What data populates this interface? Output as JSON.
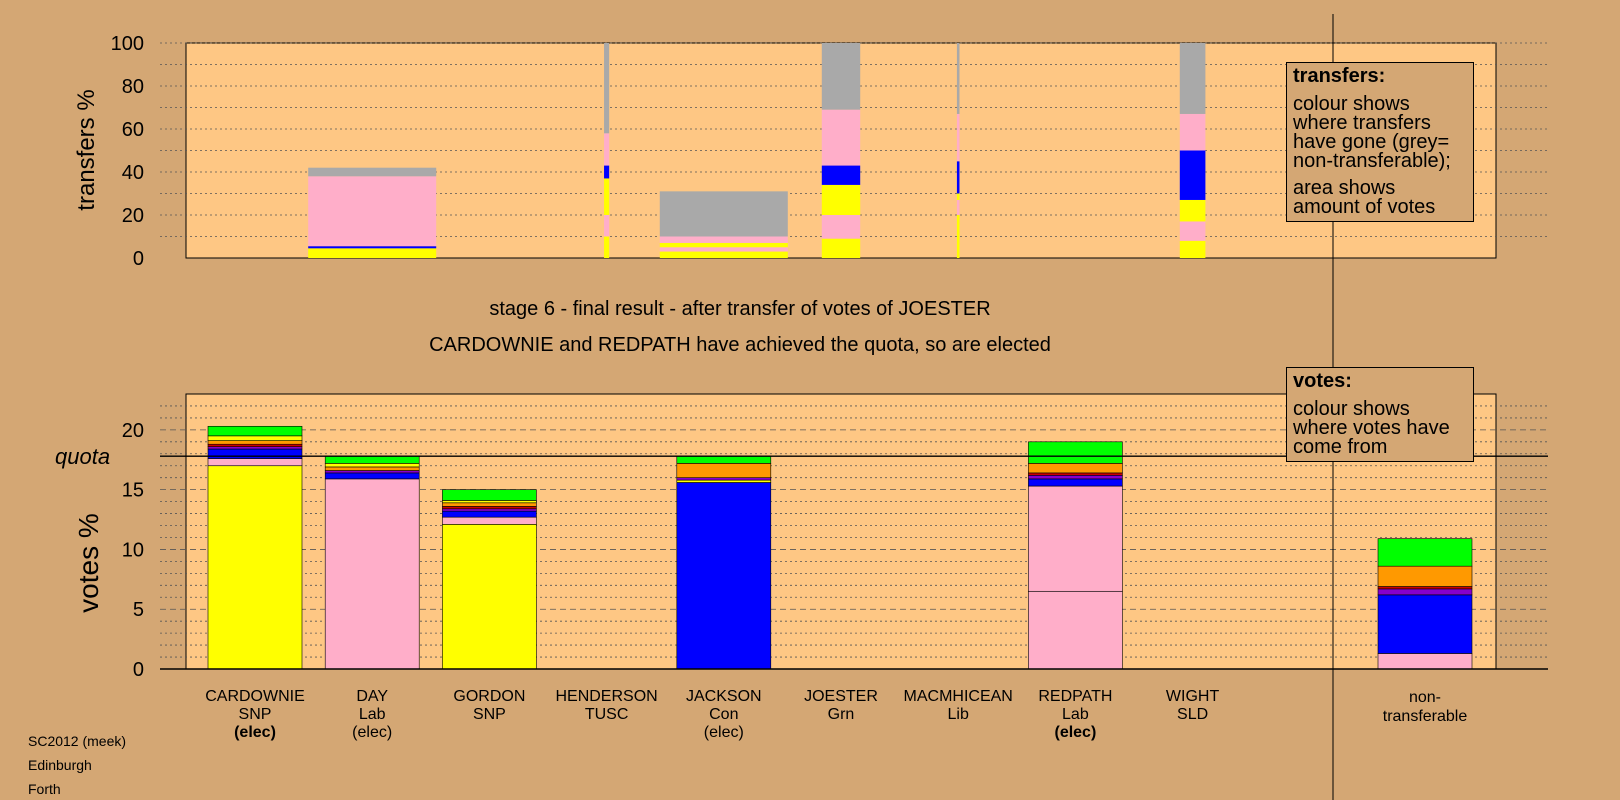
{
  "title_line1": "stage 6 - final result - after transfer of votes of JOESTER",
  "title_line2": "CARDOWNIE and REDPATH have achieved the quota, so are elected",
  "source": [
    "SC2012 (meek)",
    "Edinburgh",
    "Forth"
  ],
  "legend_transfers": {
    "heading": "transfers:",
    "text1": "colour shows where transfers have gone (grey= non-transferable);",
    "text2": "area shows amount of votes"
  },
  "legend_votes": {
    "heading": "votes:",
    "text1": "colour shows where votes have come from"
  },
  "candidates": [
    {
      "name": "CARDOWNIE",
      "party": "SNP",
      "status": "(elec)",
      "status_bold": true
    },
    {
      "name": "DAY",
      "party": "Lab",
      "status": "(elec)",
      "status_bold": false
    },
    {
      "name": "GORDON",
      "party": "SNP",
      "status": "",
      "status_bold": false
    },
    {
      "name": "HENDERSON",
      "party": "TUSC",
      "status": "",
      "status_bold": false
    },
    {
      "name": "JACKSON",
      "party": "Con",
      "status": "(elec)",
      "status_bold": false
    },
    {
      "name": "JOESTER",
      "party": "Grn",
      "status": "",
      "status_bold": false
    },
    {
      "name": "MACMHICEAN",
      "party": "Lib",
      "status": "",
      "status_bold": false
    },
    {
      "name": "REDPATH",
      "party": "Lab",
      "status": "(elec)",
      "status_bold": true
    },
    {
      "name": "WIGHT",
      "party": "SLD",
      "status": "",
      "status_bold": false
    }
  ],
  "nontransferable_label": "non-\ntransferable",
  "colors": {
    "SNP": "#ffff00",
    "Lab": "#ffaec9",
    "Con": "#0000ff",
    "Grn": "#00ff00",
    "Lib": "#ff9900",
    "TUSC": "#cc0000",
    "SLD": "#8800cc",
    "nontrans": "#a9a9a9"
  },
  "chart_data": [
    {
      "type": "bar",
      "ylabel": "transfers %",
      "ylim": [
        0,
        100
      ],
      "yticks": [
        0,
        20,
        40,
        60,
        80,
        100
      ],
      "bars": [
        {
          "slot": "DAY",
          "width_pct": 100,
          "segments": [
            {
              "party": "SNP",
              "value": 4.5
            },
            {
              "party": "Con",
              "value": 1
            },
            {
              "party": "Lab",
              "value": 32.5
            },
            {
              "party": "nontrans",
              "value": 4
            }
          ]
        },
        {
          "slot": "HENDERSON",
          "width_pct": 4,
          "segments": [
            {
              "party": "SNP",
              "value": 10
            },
            {
              "party": "Lab",
              "value": 10
            },
            {
              "party": "SNP",
              "value": 17
            },
            {
              "party": "Con",
              "value": 6
            },
            {
              "party": "Lab",
              "value": 15
            },
            {
              "party": "nontrans",
              "value": 42
            }
          ]
        },
        {
          "slot": "JACKSON",
          "width_pct": 100,
          "segments": [
            {
              "party": "SNP",
              "value": 3
            },
            {
              "party": "Lab",
              "value": 2
            },
            {
              "party": "SNP",
              "value": 2
            },
            {
              "party": "Lab",
              "value": 3
            },
            {
              "party": "nontrans",
              "value": 21
            }
          ]
        },
        {
          "slot": "JOESTER",
          "width_pct": 30,
          "segments": [
            {
              "party": "SNP",
              "value": 9
            },
            {
              "party": "Lab",
              "value": 11
            },
            {
              "party": "SNP",
              "value": 14
            },
            {
              "party": "Con",
              "value": 9
            },
            {
              "party": "Lab",
              "value": 26
            },
            {
              "party": "nontrans",
              "value": 31
            }
          ]
        },
        {
          "slot": "MACMHICEAN",
          "width_pct": 2,
          "segments": [
            {
              "party": "SNP",
              "value": 20
            },
            {
              "party": "Lab",
              "value": 7
            },
            {
              "party": "SNP",
              "value": 3
            },
            {
              "party": "Con",
              "value": 15
            },
            {
              "party": "Lab",
              "value": 22
            },
            {
              "party": "nontrans",
              "value": 33
            }
          ]
        },
        {
          "slot": "WIGHT",
          "width_pct": 20,
          "segments": [
            {
              "party": "SNP",
              "value": 8
            },
            {
              "party": "Lab",
              "value": 9
            },
            {
              "party": "SNP",
              "value": 10
            },
            {
              "party": "Con",
              "value": 23
            },
            {
              "party": "Lab",
              "value": 17
            },
            {
              "party": "nontrans",
              "value": 33
            }
          ]
        }
      ]
    },
    {
      "type": "bar",
      "ylabel": "votes %",
      "ylim": [
        0,
        23
      ],
      "yticks": [
        0,
        5,
        10,
        15,
        20
      ],
      "quota": 17.8,
      "quota_label": "quota",
      "bars": [
        {
          "candidate": "CARDOWNIE",
          "segments": [
            {
              "party": "SNP",
              "value": 17.0
            },
            {
              "party": "Lab",
              "value": 0.6
            },
            {
              "party": "Con",
              "value": 0.8
            },
            {
              "party": "SLD",
              "value": 0.2
            },
            {
              "party": "TUSC",
              "value": 0.2
            },
            {
              "party": "Lib",
              "value": 0.3
            },
            {
              "party": "SNP",
              "value": 0.4
            },
            {
              "party": "Grn",
              "value": 0.8
            }
          ]
        },
        {
          "candidate": "DAY",
          "segments": [
            {
              "party": "Lab",
              "value": 15.9
            },
            {
              "party": "Con",
              "value": 0.5
            },
            {
              "party": "SLD",
              "value": 0.2
            },
            {
              "party": "Lib",
              "value": 0.3
            },
            {
              "party": "SNP",
              "value": 0.3
            },
            {
              "party": "Grn",
              "value": 0.6
            }
          ]
        },
        {
          "candidate": "GORDON",
          "segments": [
            {
              "party": "SNP",
              "value": 12.1
            },
            {
              "party": "Lab",
              "value": 0.6
            },
            {
              "party": "Con",
              "value": 0.5
            },
            {
              "party": "SLD",
              "value": 0.2
            },
            {
              "party": "TUSC",
              "value": 0.2
            },
            {
              "party": "Lib",
              "value": 0.3
            },
            {
              "party": "SNP",
              "value": 0.2
            },
            {
              "party": "Grn",
              "value": 0.9
            }
          ]
        },
        {
          "candidate": "JACKSON",
          "segments": [
            {
              "party": "Con",
              "value": 15.6
            },
            {
              "party": "SNP",
              "value": 0.2
            },
            {
              "party": "SLD",
              "value": 0.2
            },
            {
              "party": "Lib",
              "value": 1.2
            },
            {
              "party": "Grn",
              "value": 0.6
            }
          ]
        },
        {
          "candidate": "REDPATH",
          "segments": [
            {
              "party": "Lab",
              "value": 6.5
            },
            {
              "party": "Lab",
              "value": 8.8
            },
            {
              "party": "Con",
              "value": 0.6
            },
            {
              "party": "SLD",
              "value": 0.3
            },
            {
              "party": "TUSC",
              "value": 0.2
            },
            {
              "party": "Lib",
              "value": 0.8
            },
            {
              "party": "Grn",
              "value": 1.8
            }
          ]
        },
        {
          "candidate": "non-transferable",
          "segments": [
            {
              "party": "Lab",
              "value": 1.3
            },
            {
              "party": "Con",
              "value": 4.9
            },
            {
              "party": "SLD",
              "value": 0.5
            },
            {
              "party": "TUSC",
              "value": 0.2
            },
            {
              "party": "Lib",
              "value": 1.7
            },
            {
              "party": "Grn",
              "value": 2.3
            }
          ]
        }
      ]
    }
  ]
}
